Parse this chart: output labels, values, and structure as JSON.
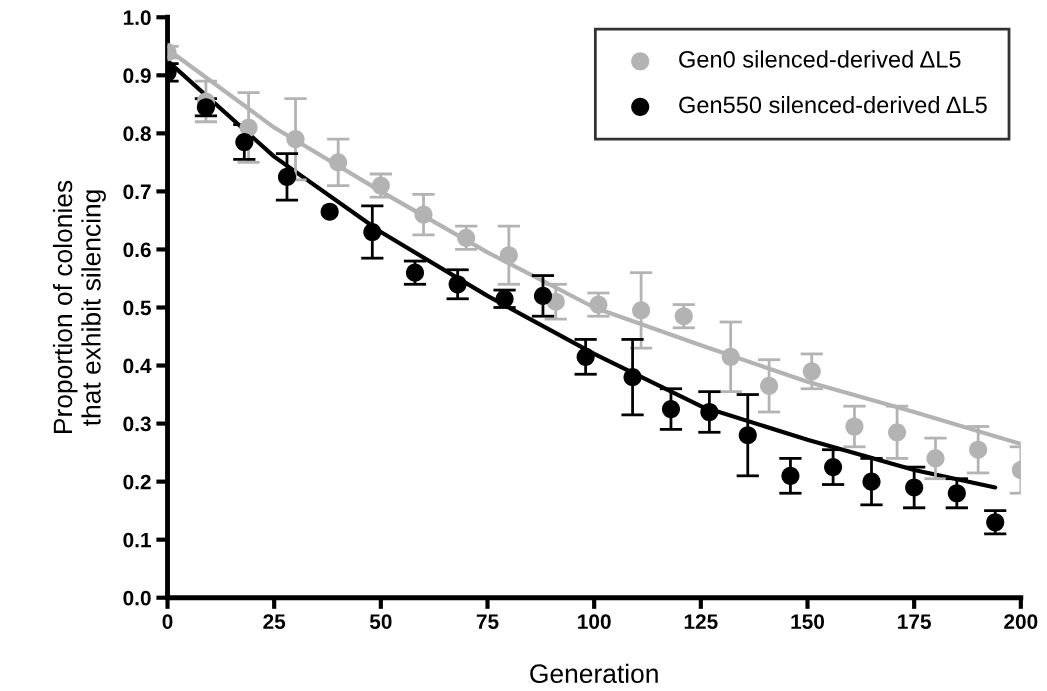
{
  "chart_data": {
    "type": "scatter",
    "xlabel": "Generation",
    "ylabel": "Proportion of colonies\nthat exhibit silencing",
    "xlim": [
      0,
      200
    ],
    "ylim": [
      0,
      1.0
    ],
    "xticks": [
      0,
      25,
      50,
      75,
      100,
      125,
      150,
      175,
      200
    ],
    "yticks": [
      {
        "value": 0,
        "label": "0.0"
      },
      {
        "value": 0.1,
        "label": "0.1"
      },
      {
        "value": 0.2,
        "label": "0.2"
      },
      {
        "value": 0.3,
        "label": "0.3"
      },
      {
        "value": 0.4,
        "label": "0.4"
      },
      {
        "value": 0.5,
        "label": "0.5"
      },
      {
        "value": 0.6,
        "label": "0.6"
      },
      {
        "value": 0.7,
        "label": "0.7"
      },
      {
        "value": 0.8,
        "label": "0.8"
      },
      {
        "value": 0.9,
        "label": "0.9"
      },
      {
        "value": 1.0,
        "label": "1.0"
      }
    ],
    "grid": false,
    "legend": "top right",
    "marker": "circle",
    "series": [
      {
        "type": "line",
        "marker": "none",
        "color": "#b3b3b3",
        "x": [
          0,
          25,
          50,
          75,
          100,
          125,
          150,
          175,
          200
        ],
        "values": [
          0.945,
          0.81,
          0.7,
          0.595,
          0.5,
          0.435,
          0.372,
          0.32,
          0.265
        ]
      },
      {
        "type": "line",
        "marker": "none",
        "color": "#000000",
        "x": [
          0,
          25,
          50,
          75,
          100,
          125,
          150,
          175,
          194
        ],
        "values": [
          0.925,
          0.76,
          0.63,
          0.52,
          0.42,
          0.33,
          0.272,
          0.22,
          0.19
        ]
      },
      {
        "name": "Gen0 silenced-derived ΔL5",
        "color": "#b3b3b3",
        "x": [
          0,
          9,
          19,
          30,
          40,
          50,
          60,
          70,
          80,
          91,
          101,
          111,
          121,
          132,
          141,
          151,
          161,
          171,
          180,
          190,
          200
        ],
        "values": [
          0.94,
          0.855,
          0.81,
          0.79,
          0.75,
          0.71,
          0.66,
          0.62,
          0.59,
          0.51,
          0.505,
          0.495,
          0.485,
          0.415,
          0.365,
          0.39,
          0.295,
          0.285,
          0.24,
          0.255,
          0.22
        ],
        "errors": [
          0.01,
          0.035,
          0.06,
          0.07,
          0.04,
          0.02,
          0.035,
          0.02,
          0.05,
          0.03,
          0.02,
          0.065,
          0.02,
          0.06,
          0.045,
          0.03,
          0.035,
          0.045,
          0.035,
          0.04,
          0.04
        ]
      },
      {
        "name": "Gen550 silenced-derived ΔL5",
        "color": "#000000",
        "x": [
          0,
          9,
          18,
          28,
          38,
          48,
          58,
          68,
          79,
          88,
          98,
          109,
          118,
          127,
          136,
          146,
          156,
          165,
          175,
          185,
          194
        ],
        "values": [
          0.905,
          0.845,
          0.785,
          0.725,
          0.665,
          0.63,
          0.56,
          0.54,
          0.515,
          0.52,
          0.415,
          0.38,
          0.325,
          0.32,
          0.28,
          0.21,
          0.225,
          0.2,
          0.19,
          0.18,
          0.13
        ],
        "errors": [
          0.015,
          0.015,
          0.03,
          0.04,
          null,
          0.045,
          0.02,
          0.025,
          0.015,
          0.035,
          0.03,
          0.065,
          0.035,
          0.035,
          0.07,
          0.03,
          0.03,
          0.04,
          0.035,
          0.025,
          0.02
        ]
      }
    ]
  }
}
